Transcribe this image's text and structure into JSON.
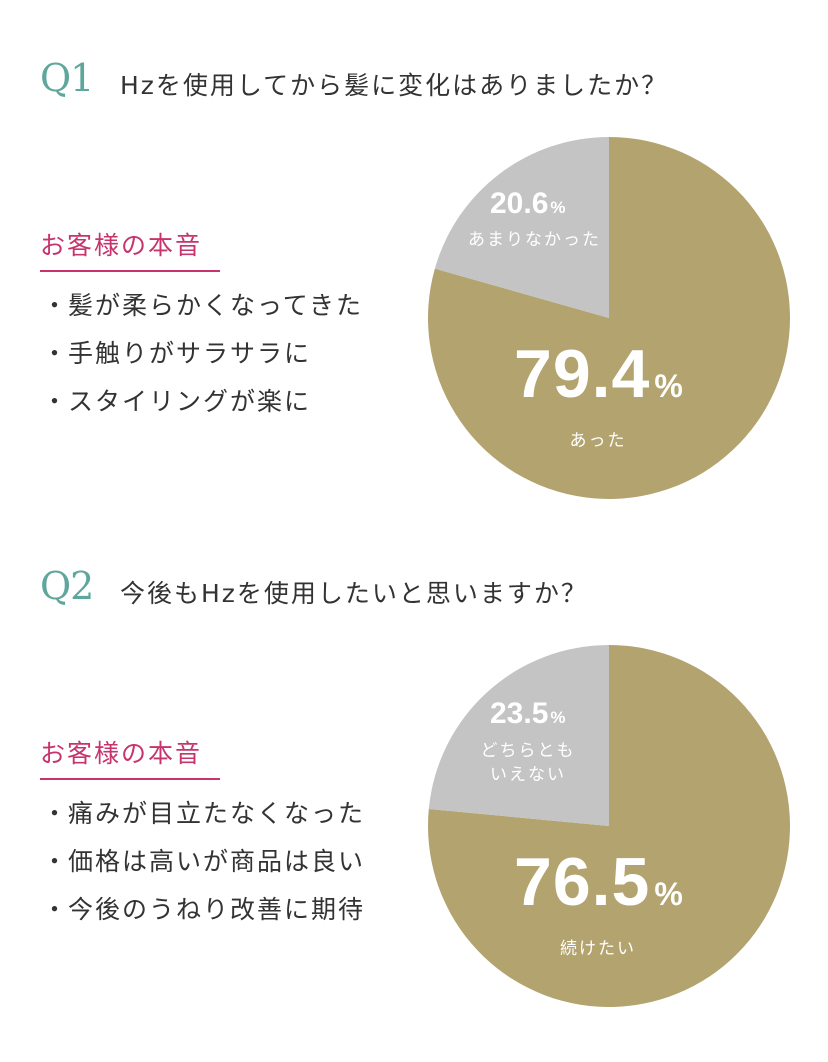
{
  "q1": {
    "label": "Q1",
    "question": "Hzを使用してから髪に変化はありましたか？",
    "voice_title": "お客様の本音",
    "voice_items": [
      "髪が柔らかくなってきた",
      "手触りがサラサラに",
      "スタイリングが楽に"
    ],
    "bullet": "・"
  },
  "q2": {
    "label": "Q2",
    "question": "今後もHzを使用したいと思いますか？",
    "voice_title": "お客様の本音",
    "voice_items": [
      "痛みが目立たなくなった",
      "価格は高いが商品は良い",
      "今後のうねり改善に期待"
    ],
    "bullet": "・"
  },
  "colors": {
    "major": "#b3a36f",
    "minor": "#c4c4c4",
    "accent": "#c7346d",
    "q_label": "#5fa79c"
  },
  "chart_data": [
    {
      "type": "pie",
      "slices": [
        {
          "label": "あった",
          "value": 79.4,
          "display": "79.4",
          "unit": "%",
          "color": "#b3a36f"
        },
        {
          "label": "あまりなかった",
          "value": 20.6,
          "display": "20.6",
          "unit": "%",
          "color": "#c4c4c4"
        }
      ]
    },
    {
      "type": "pie",
      "slices": [
        {
          "label": "続けたい",
          "value": 76.5,
          "display": "76.5",
          "unit": "%",
          "color": "#b3a36f"
        },
        {
          "label_lines": [
            "どちらとも",
            "いえない"
          ],
          "value": 23.5,
          "display": "23.5",
          "unit": "%",
          "color": "#c4c4c4"
        }
      ]
    }
  ]
}
